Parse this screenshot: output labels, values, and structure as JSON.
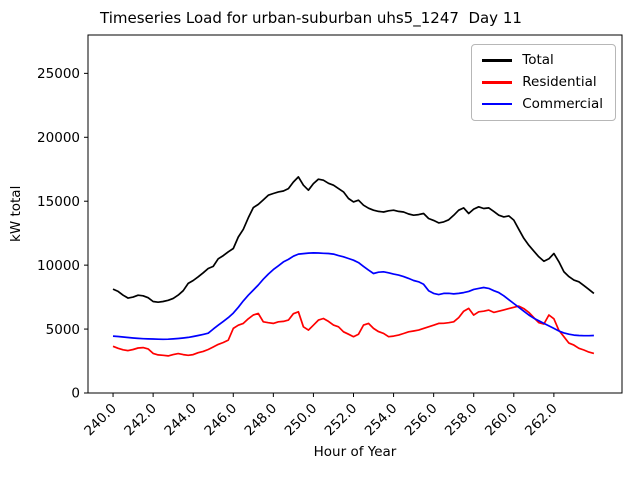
{
  "figure": {
    "title": "Timeseries Load for urban-suburban uhs5_1247  Day 11",
    "xlabel": "Hour of Year",
    "ylabel": "kW total"
  },
  "chart_data": {
    "type": "line",
    "title": "Timeseries Load for urban-suburban uhs5_1247  Day 11",
    "xlabel": "Hour of Year",
    "ylabel": "kW total",
    "grid": false,
    "legend_position": "upper right",
    "xlim": [
      238.75,
      265.4
    ],
    "ylim": [
      0,
      28000
    ],
    "xticks": [
      {
        "value": 240,
        "label": "240.0"
      },
      {
        "value": 242,
        "label": "242.0"
      },
      {
        "value": 244,
        "label": "244.0"
      },
      {
        "value": 246,
        "label": "246.0"
      },
      {
        "value": 248,
        "label": "248.0"
      },
      {
        "value": 250,
        "label": "250.0"
      },
      {
        "value": 252,
        "label": "252.0"
      },
      {
        "value": 254,
        "label": "254.0"
      },
      {
        "value": 256,
        "label": "256.0"
      },
      {
        "value": 258,
        "label": "258.0"
      },
      {
        "value": 260,
        "label": "260.0"
      },
      {
        "value": 262,
        "label": "262.0"
      }
    ],
    "yticks": [
      {
        "value": 0,
        "label": "0"
      },
      {
        "value": 5000,
        "label": "5000"
      },
      {
        "value": 10000,
        "label": "10000"
      },
      {
        "value": 15000,
        "label": "15000"
      },
      {
        "value": 20000,
        "label": "20000"
      },
      {
        "value": 25000,
        "label": "25000"
      }
    ],
    "x": [
      240.0,
      240.25,
      240.5,
      240.75,
      241.0,
      241.25,
      241.5,
      241.75,
      242.0,
      242.25,
      242.5,
      242.75,
      243.0,
      243.25,
      243.5,
      243.75,
      244.0,
      244.25,
      244.5,
      244.75,
      245.0,
      245.25,
      245.5,
      245.75,
      246.0,
      246.25,
      246.5,
      246.75,
      247.0,
      247.25,
      247.5,
      247.75,
      248.0,
      248.25,
      248.5,
      248.75,
      249.0,
      249.25,
      249.5,
      249.75,
      250.0,
      250.25,
      250.5,
      250.75,
      251.0,
      251.25,
      251.5,
      251.75,
      252.0,
      252.25,
      252.5,
      252.75,
      253.0,
      253.25,
      253.5,
      253.75,
      254.0,
      254.25,
      254.5,
      254.75,
      255.0,
      255.25,
      255.5,
      255.75,
      256.0,
      256.25,
      256.5,
      256.75,
      257.0,
      257.25,
      257.5,
      257.75,
      258.0,
      258.25,
      258.5,
      258.75,
      259.0,
      259.25,
      259.5,
      259.75,
      260.0,
      260.25,
      260.5,
      260.75,
      261.0,
      261.25,
      261.5,
      261.75,
      262.0,
      262.25,
      262.5,
      262.75,
      263.0,
      263.25,
      263.5,
      263.75,
      264.0
    ],
    "series": [
      {
        "name": "Total",
        "color": "#000000",
        "values": [
          8130,
          7950,
          7650,
          7420,
          7500,
          7650,
          7600,
          7450,
          7160,
          7100,
          7160,
          7250,
          7400,
          7660,
          8000,
          8570,
          8800,
          9090,
          9400,
          9740,
          9900,
          10500,
          10750,
          11040,
          11300,
          12200,
          12800,
          13700,
          14500,
          14750,
          15100,
          15470,
          15600,
          15730,
          15800,
          15990,
          16500,
          16900,
          16250,
          15860,
          16380,
          16720,
          16640,
          16400,
          16250,
          15990,
          15730,
          15210,
          14950,
          15080,
          14690,
          14450,
          14300,
          14200,
          14160,
          14250,
          14300,
          14200,
          14160,
          14000,
          13910,
          13950,
          14040,
          13650,
          13500,
          13300,
          13380,
          13550,
          13900,
          14300,
          14480,
          14040,
          14380,
          14560,
          14430,
          14480,
          14200,
          13910,
          13770,
          13850,
          13520,
          12800,
          12100,
          11560,
          11100,
          10650,
          10300,
          10500,
          10910,
          10260,
          9480,
          9100,
          8830,
          8700,
          8400,
          8100,
          7790
        ]
      },
      {
        "name": "Residential",
        "color": "#ff0000",
        "values": [
          3650,
          3500,
          3380,
          3320,
          3400,
          3520,
          3550,
          3450,
          3100,
          2980,
          2950,
          2900,
          3000,
          3080,
          3000,
          2950,
          3000,
          3150,
          3250,
          3400,
          3600,
          3800,
          3950,
          4140,
          5050,
          5300,
          5440,
          5800,
          6100,
          6220,
          5570,
          5500,
          5440,
          5570,
          5600,
          5700,
          6200,
          6350,
          5180,
          4920,
          5300,
          5700,
          5830,
          5600,
          5310,
          5180,
          4790,
          4600,
          4400,
          4600,
          5310,
          5440,
          5050,
          4800,
          4660,
          4400,
          4450,
          4530,
          4650,
          4790,
          4850,
          4920,
          5050,
          5180,
          5300,
          5440,
          5450,
          5500,
          5570,
          5900,
          6400,
          6620,
          6090,
          6350,
          6400,
          6480,
          6300,
          6400,
          6500,
          6600,
          6700,
          6800,
          6600,
          6300,
          5900,
          5500,
          5400,
          6100,
          5800,
          4900,
          4400,
          3900,
          3750,
          3500,
          3360,
          3200,
          3100
        ]
      },
      {
        "name": "Commercial",
        "color": "#0000ff",
        "values": [
          4450,
          4420,
          4380,
          4340,
          4300,
          4270,
          4250,
          4230,
          4220,
          4210,
          4200,
          4210,
          4230,
          4260,
          4300,
          4350,
          4420,
          4500,
          4580,
          4680,
          5000,
          5300,
          5600,
          5900,
          6250,
          6700,
          7200,
          7650,
          8050,
          8450,
          8900,
          9300,
          9650,
          9950,
          10250,
          10450,
          10700,
          10860,
          10900,
          10940,
          10960,
          10950,
          10930,
          10910,
          10860,
          10750,
          10650,
          10520,
          10390,
          10200,
          9900,
          9610,
          9350,
          9450,
          9480,
          9400,
          9300,
          9220,
          9100,
          8960,
          8800,
          8700,
          8500,
          8000,
          7790,
          7700,
          7790,
          7800,
          7750,
          7790,
          7850,
          7950,
          8100,
          8180,
          8250,
          8180,
          8000,
          7850,
          7600,
          7300,
          7000,
          6700,
          6400,
          6100,
          5850,
          5650,
          5440,
          5250,
          5050,
          4850,
          4700,
          4600,
          4530,
          4500,
          4480,
          4480,
          4500
        ]
      }
    ]
  }
}
